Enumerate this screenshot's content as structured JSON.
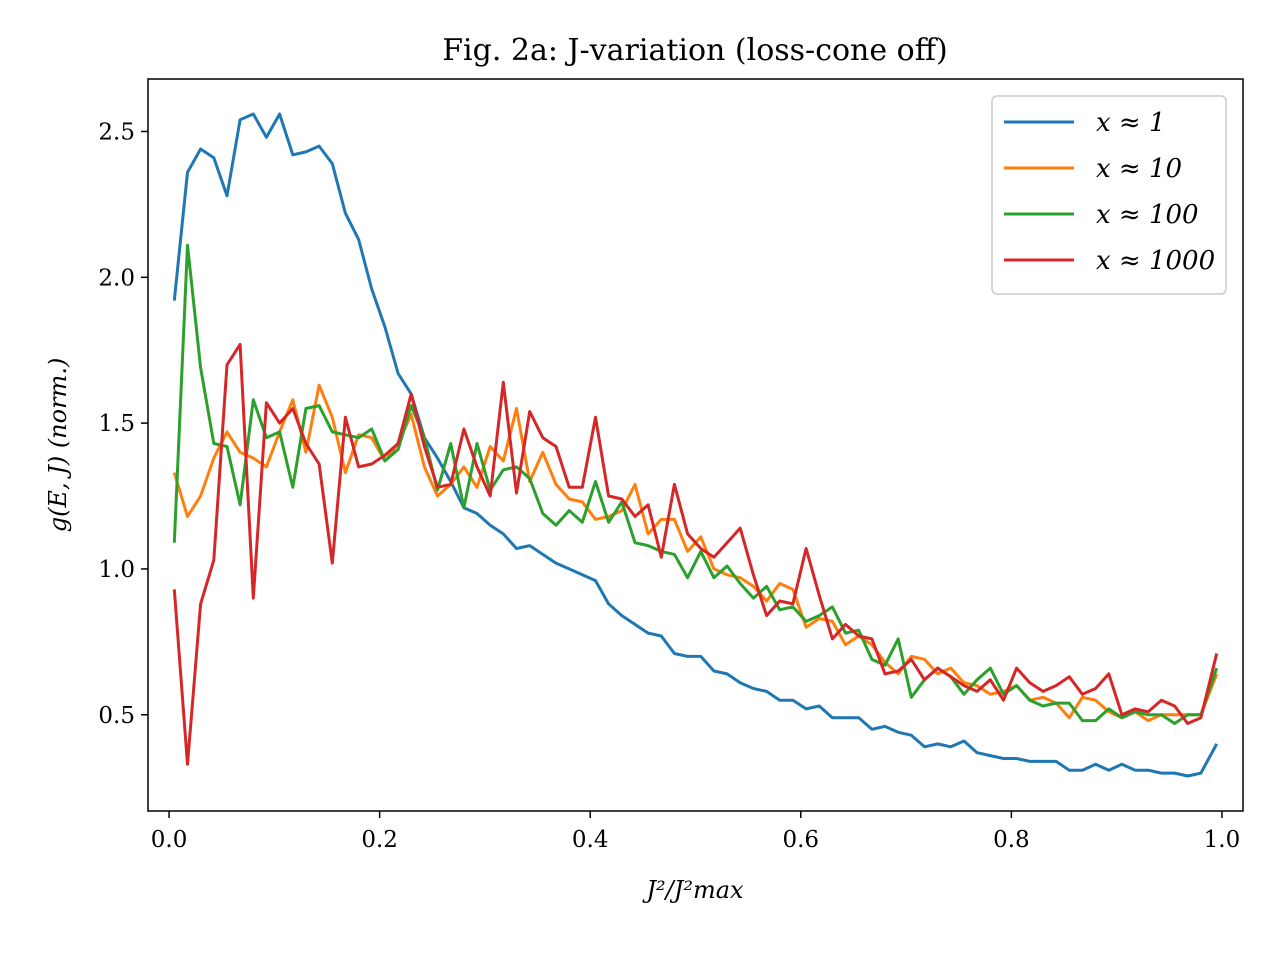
{
  "chart_data": {
    "type": "line",
    "title": "Fig. 2a: J-variation (loss-cone off)",
    "xlabel": "J²/J²max",
    "ylabel": "g(E, J) (norm.)",
    "xlim": [
      -0.02,
      1.02
    ],
    "ylim": [
      0.17,
      2.68
    ],
    "xticks": [
      "0.0",
      "0.2",
      "0.4",
      "0.6",
      "0.8",
      "1.0"
    ],
    "yticks": [
      "0.5",
      "1.0",
      "1.5",
      "2.0",
      "2.5"
    ],
    "grid": false,
    "legend_position": "top-right",
    "x": [
      0.005,
      0.0175,
      0.03,
      0.0425,
      0.055,
      0.0675,
      0.08,
      0.0925,
      0.105,
      0.1175,
      0.13,
      0.1425,
      0.155,
      0.1675,
      0.18,
      0.1925,
      0.205,
      0.2175,
      0.23,
      0.2425,
      0.255,
      0.2675,
      0.28,
      0.2925,
      0.305,
      0.3175,
      0.33,
      0.3425,
      0.355,
      0.3675,
      0.38,
      0.3925,
      0.405,
      0.4175,
      0.43,
      0.4425,
      0.455,
      0.4675,
      0.48,
      0.4925,
      0.505,
      0.5175,
      0.53,
      0.5425,
      0.555,
      0.5675,
      0.58,
      0.5925,
      0.605,
      0.6175,
      0.63,
      0.6425,
      0.655,
      0.6675,
      0.68,
      0.6925,
      0.705,
      0.7175,
      0.73,
      0.7425,
      0.755,
      0.7675,
      0.78,
      0.7925,
      0.805,
      0.8175,
      0.83,
      0.8425,
      0.855,
      0.8675,
      0.88,
      0.8925,
      0.905,
      0.9175,
      0.93,
      0.9425,
      0.955,
      0.9675,
      0.98,
      0.995
    ],
    "series": [
      {
        "name": "x ≈ 1",
        "color": "#1f77b4",
        "values": [
          1.92,
          2.36,
          2.44,
          2.41,
          2.28,
          2.54,
          2.56,
          2.48,
          2.56,
          2.42,
          2.43,
          2.45,
          2.39,
          2.22,
          2.13,
          1.96,
          1.83,
          1.67,
          1.6,
          1.45,
          1.38,
          1.3,
          1.21,
          1.19,
          1.15,
          1.12,
          1.07,
          1.08,
          1.05,
          1.02,
          1.0,
          0.98,
          0.96,
          0.88,
          0.84,
          0.81,
          0.78,
          0.77,
          0.71,
          0.7,
          0.7,
          0.65,
          0.64,
          0.61,
          0.59,
          0.58,
          0.55,
          0.55,
          0.52,
          0.53,
          0.49,
          0.49,
          0.49,
          0.45,
          0.46,
          0.44,
          0.43,
          0.39,
          0.4,
          0.39,
          0.41,
          0.37,
          0.36,
          0.35,
          0.35,
          0.34,
          0.34,
          0.34,
          0.31,
          0.31,
          0.33,
          0.31,
          0.33,
          0.31,
          0.31,
          0.3,
          0.3,
          0.29,
          0.3,
          0.4
        ]
      },
      {
        "name": "x ≈ 10",
        "color": "#ff7f0e",
        "values": [
          1.33,
          1.18,
          1.25,
          1.38,
          1.47,
          1.4,
          1.38,
          1.35,
          1.47,
          1.58,
          1.4,
          1.63,
          1.52,
          1.33,
          1.46,
          1.45,
          1.37,
          1.43,
          1.53,
          1.35,
          1.25,
          1.29,
          1.35,
          1.28,
          1.42,
          1.37,
          1.55,
          1.3,
          1.4,
          1.29,
          1.24,
          1.23,
          1.17,
          1.18,
          1.2,
          1.29,
          1.12,
          1.17,
          1.17,
          1.06,
          1.11,
          1.0,
          0.98,
          0.97,
          0.94,
          0.89,
          0.95,
          0.93,
          0.8,
          0.83,
          0.82,
          0.74,
          0.77,
          0.74,
          0.68,
          0.64,
          0.7,
          0.69,
          0.64,
          0.66,
          0.61,
          0.6,
          0.57,
          0.58,
          0.6,
          0.55,
          0.56,
          0.54,
          0.49,
          0.56,
          0.55,
          0.51,
          0.49,
          0.51,
          0.48,
          0.5,
          0.5,
          0.5,
          0.5,
          0.64
        ]
      },
      {
        "name": "x ≈ 100",
        "color": "#2ca02c",
        "values": [
          1.09,
          2.11,
          1.69,
          1.43,
          1.42,
          1.22,
          1.58,
          1.45,
          1.47,
          1.28,
          1.55,
          1.56,
          1.47,
          1.46,
          1.45,
          1.48,
          1.37,
          1.41,
          1.56,
          1.45,
          1.27,
          1.43,
          1.21,
          1.43,
          1.27,
          1.34,
          1.35,
          1.31,
          1.19,
          1.15,
          1.2,
          1.16,
          1.3,
          1.16,
          1.23,
          1.09,
          1.08,
          1.06,
          1.05,
          0.97,
          1.06,
          0.97,
          1.01,
          0.95,
          0.9,
          0.94,
          0.86,
          0.87,
          0.82,
          0.84,
          0.87,
          0.78,
          0.79,
          0.69,
          0.67,
          0.76,
          0.56,
          0.62,
          0.66,
          0.63,
          0.57,
          0.62,
          0.66,
          0.57,
          0.6,
          0.55,
          0.53,
          0.54,
          0.54,
          0.48,
          0.48,
          0.52,
          0.49,
          0.51,
          0.5,
          0.5,
          0.47,
          0.5,
          0.5,
          0.66
        ]
      },
      {
        "name": "x ≈ 1000",
        "color": "#d62728",
        "values": [
          0.93,
          0.33,
          0.88,
          1.03,
          1.7,
          1.77,
          0.9,
          1.57,
          1.5,
          1.55,
          1.43,
          1.36,
          1.02,
          1.52,
          1.35,
          1.36,
          1.39,
          1.43,
          1.6,
          1.42,
          1.28,
          1.29,
          1.48,
          1.35,
          1.25,
          1.64,
          1.26,
          1.54,
          1.45,
          1.42,
          1.28,
          1.28,
          1.52,
          1.25,
          1.24,
          1.18,
          1.22,
          1.04,
          1.29,
          1.12,
          1.07,
          1.04,
          1.09,
          1.14,
          0.98,
          0.84,
          0.89,
          0.88,
          1.07,
          0.91,
          0.76,
          0.81,
          0.77,
          0.76,
          0.64,
          0.65,
          0.69,
          0.62,
          0.66,
          0.63,
          0.6,
          0.58,
          0.62,
          0.55,
          0.66,
          0.61,
          0.58,
          0.6,
          0.63,
          0.57,
          0.59,
          0.64,
          0.5,
          0.52,
          0.51,
          0.55,
          0.53,
          0.47,
          0.49,
          0.71
        ]
      }
    ]
  }
}
